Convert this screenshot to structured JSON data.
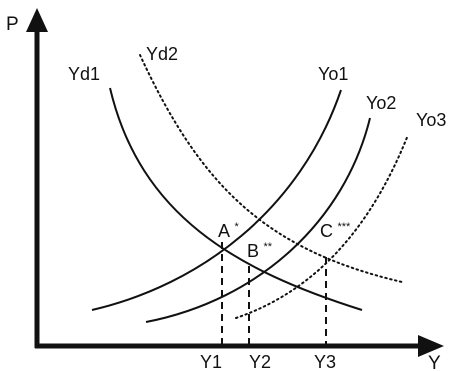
{
  "axes": {
    "y_label": "P",
    "x_label": "Y"
  },
  "curves": {
    "yd1": "Yd1",
    "yd2": "Yd2",
    "yo1": "Yo1",
    "yo2": "Yo2",
    "yo3": "Yo3"
  },
  "points": {
    "a": {
      "label": "A",
      "mark": "*"
    },
    "b": {
      "label": "B",
      "mark": "**"
    },
    "c": {
      "label": "C",
      "mark": "***"
    }
  },
  "ticks": {
    "y1": "Y1",
    "y2": "Y2",
    "y3": "Y3"
  },
  "colors": {
    "ink": "#111111",
    "background": "#ffffff"
  }
}
